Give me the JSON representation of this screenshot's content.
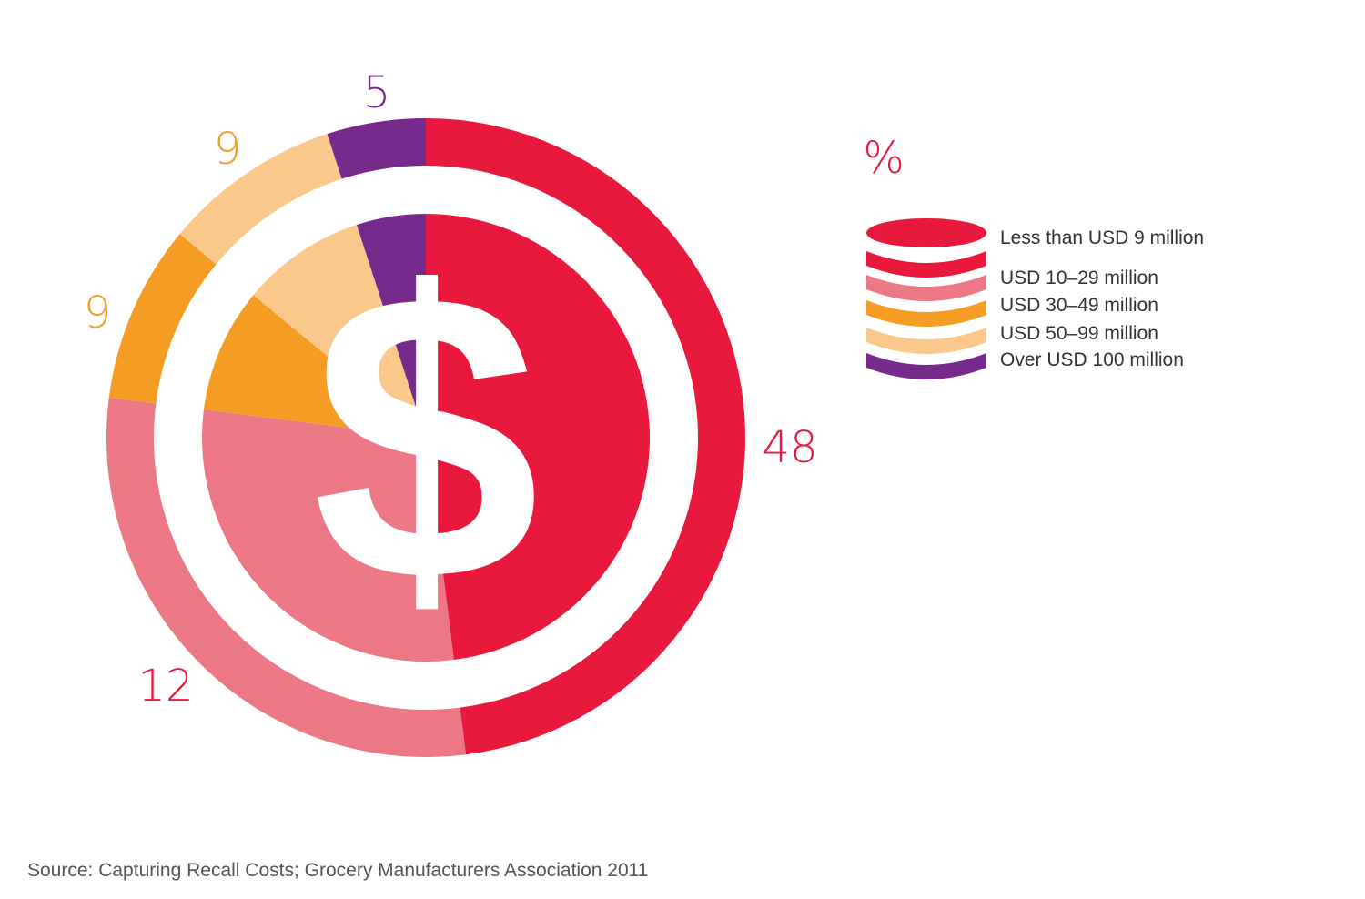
{
  "chart_data": {
    "type": "pie",
    "unit_label": "%",
    "categories": [
      "Less than USD 9 million",
      "USD 10–29 million",
      "USD 30–49 million",
      "USD 50–99 million",
      "Over USD 100 million"
    ],
    "values": [
      48,
      12,
      9,
      9,
      5
    ],
    "colors": [
      "#e8193c",
      "#ec7886",
      "#f59c25",
      "#f9c88a",
      "#762a8b"
    ],
    "legend_position": "right",
    "center_icon": "dollar-sign-icon",
    "center_glyph": "$",
    "source": "Source: Capturing Recall Costs; Grocery Manufacturers Association 2011"
  }
}
